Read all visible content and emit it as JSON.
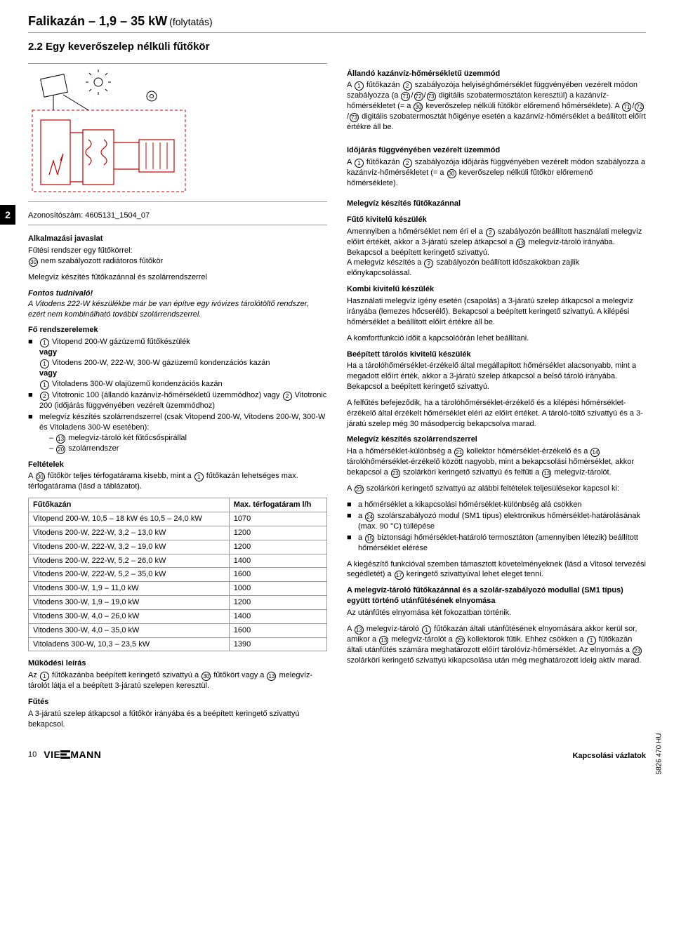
{
  "header": {
    "title": "Falikazán – 1,9 – 35 kW",
    "sub": "(folytatás)"
  },
  "sectionTitle": "2.2 Egy keverőszelep nélküli fűtőkör",
  "sidebarTab": "2",
  "idLine": "Azonosítószám: 4605131_1504_07",
  "left": {
    "appTitle": "Alkalmazási javaslat",
    "sys1": "Fűtési rendszer egy fűtőkörrel:",
    "sys2": " nem szabályozott radiátoros fűtőkör",
    "meleg": "Melegvíz készítés fűtőkazánnal és szolárrendszerrel",
    "fontosTitle": "Fontos tudnivaló!",
    "fontosText": "A Vitodens 222-W készülékbe már be van építve egy ivóvizes tárolótöltő rendszer, ezért nem kombinálható további szolárrendszerrel.",
    "fo": "Fő rendszerelemek",
    "foItems": {
      "a1": " Vitopend 200-W gázüzemű fűtőkészülék",
      "a2": "vagy",
      "a3": " Vitodens 200-W, 222-W, 300-W gázüzemű kondenzációs kazán",
      "a4": "vagy",
      "a5": " Vitoladens 300-W olajüzemű kondenzációs kazán",
      "b1": " Vitotronic 100 (állandó kazánvíz-hőmérsékletű üzemmódhoz) vagy ",
      "b1b": " Vitotronic 200 (időjárás függvényében vezérelt üzemmódhoz)",
      "c1": "melegvíz készítés szolárrendszerrel (csak Vitopend 200-W, Vitodens 200-W, 300-W és Vitoladens 300-W esetében):",
      "c2a": " melegvíz-tároló két fűtőcsőspirállal",
      "c2b": " szolárrendszer"
    },
    "feltTitle": "Feltételek",
    "feltText1": "A ",
    "feltText2": " fűtőkör teljes térfogatárama kisebb, mint a ",
    "feltText3": " fűtőkazán lehetséges max. térfogatárama (lásd a táblázatot).",
    "table": {
      "h1": "Fűtőkazán",
      "h2": "Max. térfogatáram l/h",
      "rows": [
        [
          "Vitopend 200-W, 10,5 – 18 kW és 10,5 – 24,0 kW",
          "1070"
        ],
        [
          "Vitodens 200-W, 222-W, 3,2 – 13,0 kW",
          "1200"
        ],
        [
          "Vitodens 200-W, 222-W, 3,2 – 19,0 kW",
          "1200"
        ],
        [
          "Vitodens 200-W, 222-W, 5,2 – 26,0 kW",
          "1400"
        ],
        [
          "Vitodens 200-W, 222-W, 5,2 – 35,0 kW",
          "1600"
        ],
        [
          "Vitodens 300-W, 1,9 – 11,0 kW",
          "1000"
        ],
        [
          "Vitodens 300-W, 1,9 – 19,0 kW",
          "1200"
        ],
        [
          "Vitodens 300-W, 4,0 – 26,0 kW",
          "1400"
        ],
        [
          "Vitodens 300-W, 4,0 – 35,0 kW",
          "1600"
        ],
        [
          "Vitoladens 300-W, 10,3 – 23,5 kW",
          "1390"
        ]
      ]
    },
    "mukTitle": "Működési leírás",
    "muk1": "Az ",
    "muk2": " fűtőkazánba beépített keringető szivattyú a ",
    "muk3": " fűtőkört vagy a ",
    "muk4": " melegvíz-tárolót látja el a beépített 3-járatú szelepen keresztül.",
    "futTitle": "Fűtés",
    "futText": "A 3-járatú szelep átkapcsol a fűtőkör irányába és a beépített keringető szivattyú bekapcsol."
  },
  "right": {
    "allTitle": "Állandó kazánvíz-hőmérsékletű üzemmód",
    "all1": "A ",
    "all2": " fűtőkazán ",
    "all3": " szabályozója helyiséghőmérséklet függvényében vezérelt módon szabályozza (a ",
    "all4": " digitális szobatermosztáton keresztül) a kazánvíz-hőmérsékletet (= a ",
    "all5": " keverőszelep nélküli fűtőkör előremenő hőmérséklete). A ",
    "all6": " digitális szobatermosztát hőigénye esetén a kazánvíz-hőmérséklet a beállított előírt értékre áll be.",
    "idoTitle": "Időjárás függvényében vezérelt üzemmód",
    "ido1": "A ",
    "ido2": " fűtőkazán ",
    "ido3": " szabályozója időjárás függvényében vezérelt módon szabályozza a kazánvíz-hőmérsékletet (= a ",
    "ido4": " keverőszelep nélküli fűtőkör előremenő hőmérséklete).",
    "mvTitle": "Melegvíz készítés fűtőkazánnal",
    "fkTitle": "Fűtő kivitelű készülék",
    "fk1": "Amennyiben a hőmérséklet nem éri el a ",
    "fk2": " szabályozón beállított használati melegvíz előírt értékét, akkor a 3-járatú szelep átkapcsol a ",
    "fk3": " melegvíz-tároló irányába. Bekapcsol a beépített keringető szivattyú.",
    "fk4": "A melegvíz készítés a ",
    "fk5": " szabályozón beállított időszakokban zajlik előnykapcsolással.",
    "kkTitle": "Kombi kivitelű készülék",
    "kk1": "Használati melegvíz igény esetén (csapolás) a 3-járatú szelep átkapcsol a melegvíz irányába (lemezes hőcserélő). Bekapcsol a beépített keringető szivattyú. A kilépési hőmérséklet a beállított előírt értékre áll be.",
    "kk2": "A komfortfunkció időit a kapcsolóórán lehet beállítani.",
    "btTitle": "Beépített tárolós kivitelű készülék",
    "bt1": "Ha a tárolóhőmérséklet-érzékelő által megállapított hőmérséklet alacsonyabb, mint a megadott előírt érték, akkor a 3-járatú szelep átkapcsol a belső tároló irányába. Bekapcsol a beépített keringető szivattyú.",
    "bt2": "A felfűtés befejeződik, ha a tárolóhőmérséklet-érzékelő és a kilépési hőmérséklet-érzékelő által érzékelt hőmérséklet eléri az előírt értéket. A tároló-töltő szivattyú és a 3-járatú szelep még 30 másodpercig bekapcsolva marad.",
    "msTitle": "Melegvíz készítés szolárrendszerrel",
    "ms1a": "Ha a hőmérséklet-különbség a ",
    "ms1b": " kollektor hőmérséklet-érzékelő és a ",
    "ms1c": " tárolóhőmérséklet-érzékelő között nagyobb, mint a bekapcsolási hőmérséklet, akkor bekapcsol a ",
    "ms1d": " szolárköri keringető szivattyú és felfűti a ",
    "ms1e": " melegvíz-tárolót.",
    "ms2": "A ",
    "ms2b": " szolárköri keringető szivattyú az alábbi feltételek teljesülésekor kapcsol ki:",
    "ms3a": "a hőmérséklet a kikapcsolási hőmérséklet-különbség alá csökken",
    "ms3b1": "a ",
    "ms3b2": " szolárszabályozó modul (SM1 típus) elektronikus hőmérséklet-határolásának (max. 90 °C) túllépése",
    "ms3c1": "a ",
    "ms3c2": " biztonsági hőmérséklet-határoló termosztáton (amennyiben létezik) beállított hőmérséklet elérése",
    "ms4a": "A kiegészítő funkcióval szemben támasztott követelményeknek (lásd a Vitosol tervezési segédletét) a ",
    "ms4b": " keringető szivattyúval lehet eleget tenni.",
    "smTitle": "A melegvíz-tároló fűtőkazánnal és a szolár-szabályozó modullal (SM1 típus) együtt történő utánfűtésének elnyomása",
    "sm1": "Az utánfűtés elnyomása két fokozatban történik.",
    "sm2a": "A ",
    "sm2b": " melegvíz-tároló ",
    "sm2c": " fűtőkazán általi utánfűtésének elnyomására akkor kerül sor, amikor a ",
    "sm2d": " melegvíz-tárolót a ",
    "sm2e": " kollektorok fűtik. Ehhez csökken a ",
    "sm2f": " fűtőkazán általi utánfűtés számára meghatározott előírt tárolóvíz-hőmérséklet. Az elnyomás a ",
    "sm2g": " szolárköri keringető szivattyú kikapcsolása után még meghatározott ideig aktív marad."
  },
  "footer": {
    "page": "10",
    "logo": "VIE",
    "logo2": "MANN",
    "right": "Kapcsolási vázlatok",
    "rot": "5826 470 HU"
  },
  "schematic": {
    "stroke": "#c00000",
    "dash": "#c00000"
  }
}
